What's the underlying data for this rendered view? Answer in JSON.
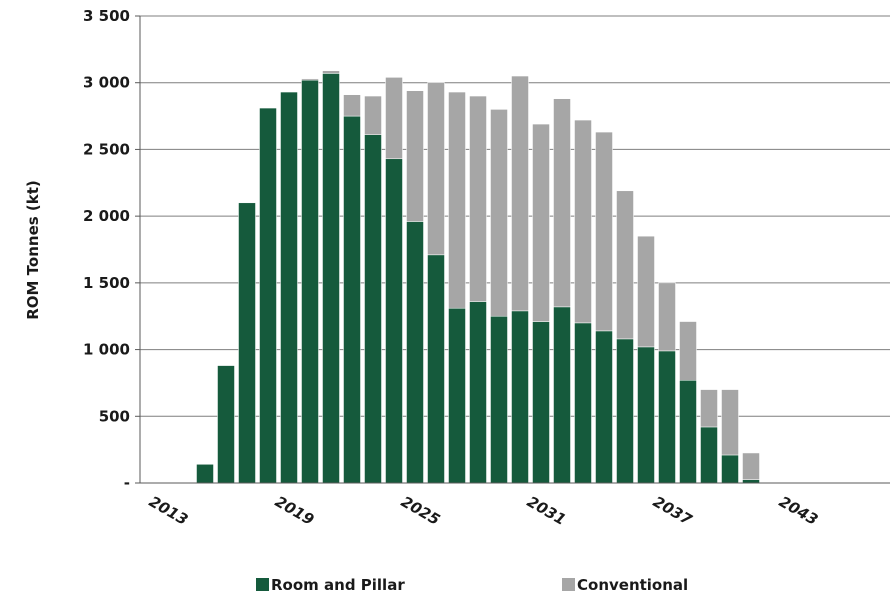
{
  "chart_data": {
    "type": "bar",
    "stacked": true,
    "ylabel": "ROM Tonnes (kt)",
    "xlabel": "",
    "ylim": [
      0,
      3500
    ],
    "y_ticks": [
      {
        "value": 0,
        "label": "-"
      },
      {
        "value": 500,
        "label": "500"
      },
      {
        "value": 1000,
        "label": "1 000"
      },
      {
        "value": 1500,
        "label": "1 500"
      },
      {
        "value": 2000,
        "label": "2 000"
      },
      {
        "value": 2500,
        "label": "2 500"
      },
      {
        "value": 3000,
        "label": "3 000"
      },
      {
        "value": 3500,
        "label": "3 500"
      }
    ],
    "x_tick_labels": [
      "2013",
      "2019",
      "2025",
      "2031",
      "2037",
      "2043"
    ],
    "x_tick_years": [
      2013,
      2019,
      2025,
      2031,
      2037,
      2043
    ],
    "grid": "horizontal",
    "legend_position": "bottom",
    "categories": [
      2013,
      2014,
      2015,
      2016,
      2017,
      2018,
      2019,
      2020,
      2021,
      2022,
      2023,
      2024,
      2025,
      2026,
      2027,
      2028,
      2029,
      2030,
      2031,
      2032,
      2033,
      2034,
      2035,
      2036,
      2037,
      2038,
      2039,
      2040,
      2041,
      2042,
      2043,
      2044,
      2045,
      2046
    ],
    "series": [
      {
        "name": "Room and Pillar",
        "color": "#155a3c",
        "values": [
          0,
          0,
          140,
          880,
          2100,
          2810,
          2930,
          3020,
          3070,
          2750,
          2610,
          2430,
          1960,
          1710,
          1310,
          1360,
          1250,
          1290,
          1210,
          1320,
          1200,
          1140,
          1080,
          1020,
          990,
          770,
          420,
          210,
          25,
          0,
          0,
          0,
          0,
          0
        ]
      },
      {
        "name": "Conventional",
        "color": "#a6a6a6",
        "values": [
          0,
          0,
          0,
          0,
          0,
          0,
          0,
          10,
          20,
          160,
          290,
          610,
          980,
          1290,
          1620,
          1540,
          1550,
          1760,
          1480,
          1560,
          1520,
          1490,
          1110,
          830,
          510,
          440,
          280,
          490,
          200,
          0,
          0,
          0,
          0,
          0
        ]
      }
    ]
  }
}
